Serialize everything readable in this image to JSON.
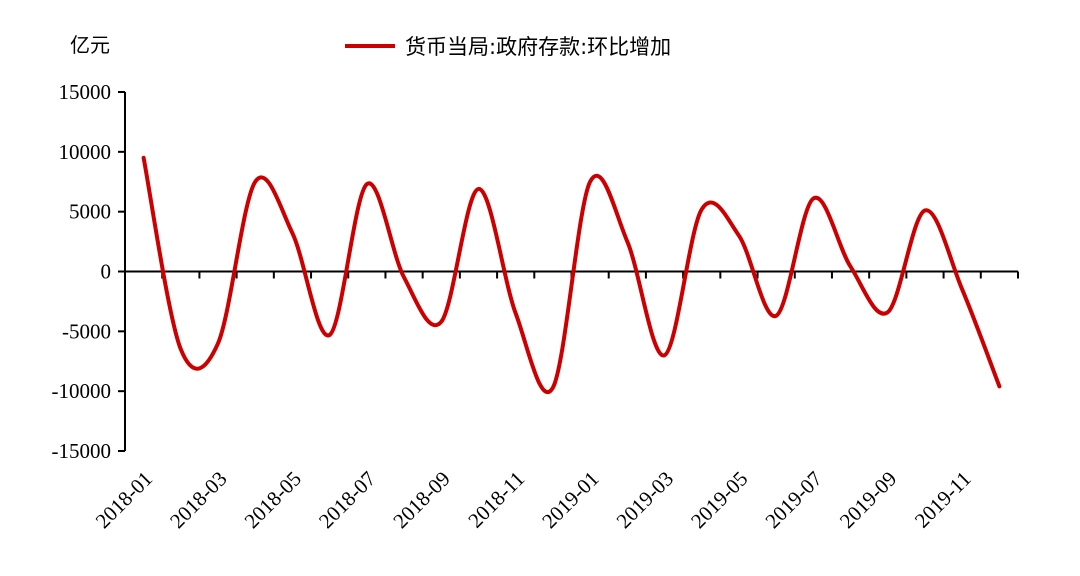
{
  "chart_data": {
    "type": "line",
    "title": "",
    "y_unit_label": "亿元",
    "xlabel": "",
    "ylabel": "",
    "ylim": [
      -15000,
      15000
    ],
    "y_ticks": [
      15000,
      10000,
      5000,
      0,
      -5000,
      -10000,
      -15000
    ],
    "y_tick_labels": [
      "15000",
      "10000",
      "5000",
      "0",
      "-5000",
      "-10000",
      "-15000"
    ],
    "x_tick_labels": [
      "2018-01",
      "2018-03",
      "2018-05",
      "2018-07",
      "2018-09",
      "2018-11",
      "2019-01",
      "2019-03",
      "2019-05",
      "2019-07",
      "2019-09",
      "2019-11"
    ],
    "categories": [
      "2018-01",
      "2018-02",
      "2018-03",
      "2018-04",
      "2018-05",
      "2018-06",
      "2018-07",
      "2018-08",
      "2018-09",
      "2018-10",
      "2018-11",
      "2018-12",
      "2019-01",
      "2019-02",
      "2019-03",
      "2019-04",
      "2019-05",
      "2019-06",
      "2019-07",
      "2019-08",
      "2019-09",
      "2019-10",
      "2019-11",
      "2019-12"
    ],
    "legend_position": "top-center",
    "grid": false,
    "series": [
      {
        "name": "货币当局:政府存款:环比增加",
        "color": "#cc0000",
        "values": [
          9500,
          -6500,
          -6000,
          7500,
          3200,
          -5300,
          7300,
          -500,
          -4200,
          6900,
          -3500,
          -9700,
          7500,
          2500,
          -7000,
          5200,
          3000,
          -3700,
          6100,
          400,
          -3400,
          5100,
          -1500,
          -9600
        ]
      }
    ]
  }
}
